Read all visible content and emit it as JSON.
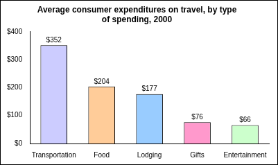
{
  "chart_data": {
    "type": "bar",
    "title": "Average consumer expenditures on travel, by type of spending, 2000",
    "categories": [
      "Transportation",
      "Food",
      "Lodging",
      "Gifts",
      "Entertainment"
    ],
    "values": [
      352,
      204,
      177,
      76,
      66
    ],
    "value_labels": [
      "$352",
      "$204",
      "$177",
      "$76",
      "$66"
    ],
    "colors": [
      "#ccccff",
      "#ffcc99",
      "#99ccff",
      "#ff99cc",
      "#ccffcc"
    ],
    "ylim": [
      0,
      400
    ],
    "yticks": [
      {
        "value": 0,
        "label": "$0"
      },
      {
        "value": 100,
        "label": "$100"
      },
      {
        "value": 200,
        "label": "$200"
      },
      {
        "value": 300,
        "label": "$300"
      },
      {
        "value": 400,
        "label": "$400"
      }
    ],
    "grid": false,
    "data_labels": true
  }
}
